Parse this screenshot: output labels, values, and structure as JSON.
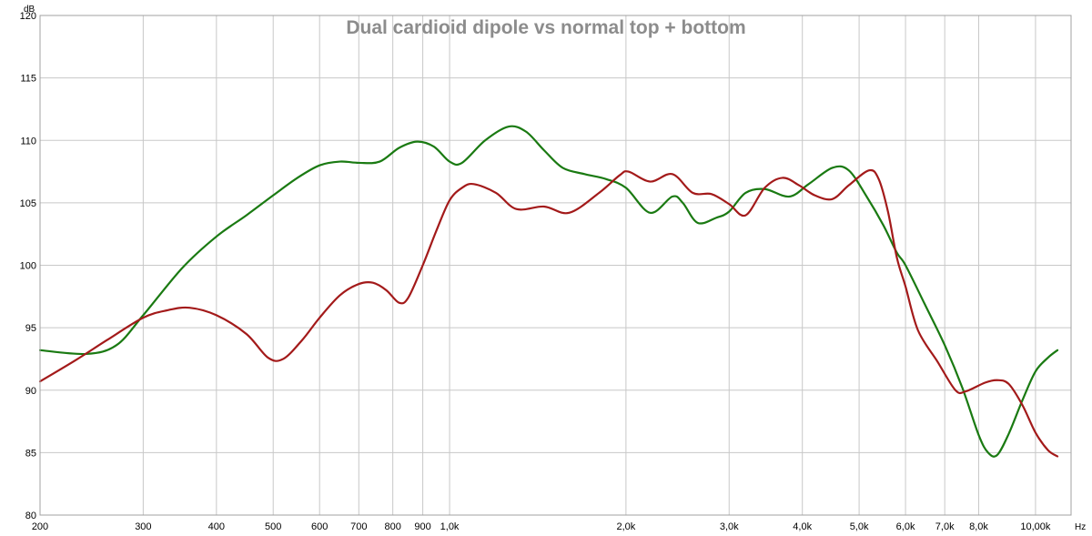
{
  "chart_data": {
    "type": "line",
    "title": "Dual cardioid dipole vs normal top + bottom",
    "ylabel": "dB",
    "xunit": "Hz",
    "xscale": "log",
    "xlim": [
      200,
      11500
    ],
    "ylim": [
      80,
      120
    ],
    "grid": true,
    "y_ticks": [
      {
        "value": 80,
        "label": "80"
      },
      {
        "value": 85,
        "label": "85"
      },
      {
        "value": 90,
        "label": "90"
      },
      {
        "value": 95,
        "label": "95"
      },
      {
        "value": 100,
        "label": "100"
      },
      {
        "value": 105,
        "label": "105"
      },
      {
        "value": 110,
        "label": "110"
      },
      {
        "value": 115,
        "label": "115"
      },
      {
        "value": 120,
        "label": "120"
      }
    ],
    "x_ticks": [
      {
        "value": 200,
        "label": "200"
      },
      {
        "value": 300,
        "label": "300"
      },
      {
        "value": 400,
        "label": "400"
      },
      {
        "value": 500,
        "label": "500"
      },
      {
        "value": 600,
        "label": "600"
      },
      {
        "value": 700,
        "label": "700"
      },
      {
        "value": 800,
        "label": "800"
      },
      {
        "value": 900,
        "label": "900"
      },
      {
        "value": 1000,
        "label": "1,0k"
      },
      {
        "value": 2000,
        "label": "2,0k"
      },
      {
        "value": 3000,
        "label": "3,0k"
      },
      {
        "value": 4000,
        "label": "4,0k"
      },
      {
        "value": 5000,
        "label": "5,0k"
      },
      {
        "value": 6000,
        "label": "6,0k"
      },
      {
        "value": 7000,
        "label": "7,0k"
      },
      {
        "value": 8000,
        "label": "8,0k"
      },
      {
        "value": 10000,
        "label": "10,00k"
      }
    ],
    "series": [
      {
        "color": "#1a7a12",
        "points": [
          [
            200,
            93.2
          ],
          [
            240,
            92.9
          ],
          [
            270,
            93.6
          ],
          [
            300,
            96.0
          ],
          [
            350,
            99.8
          ],
          [
            400,
            102.3
          ],
          [
            450,
            104.0
          ],
          [
            500,
            105.6
          ],
          [
            550,
            107.0
          ],
          [
            600,
            108.0
          ],
          [
            650,
            108.3
          ],
          [
            700,
            108.2
          ],
          [
            760,
            108.3
          ],
          [
            820,
            109.4
          ],
          [
            880,
            109.9
          ],
          [
            940,
            109.5
          ],
          [
            1000,
            108.3
          ],
          [
            1050,
            108.2
          ],
          [
            1150,
            110.0
          ],
          [
            1260,
            111.1
          ],
          [
            1350,
            110.7
          ],
          [
            1450,
            109.2
          ],
          [
            1560,
            107.8
          ],
          [
            1700,
            107.3
          ],
          [
            1850,
            106.9
          ],
          [
            2000,
            106.2
          ],
          [
            2200,
            104.2
          ],
          [
            2400,
            105.5
          ],
          [
            2500,
            105.0
          ],
          [
            2650,
            103.4
          ],
          [
            2850,
            103.8
          ],
          [
            3000,
            104.3
          ],
          [
            3200,
            105.8
          ],
          [
            3450,
            106.1
          ],
          [
            3800,
            105.5
          ],
          [
            4100,
            106.5
          ],
          [
            4500,
            107.8
          ],
          [
            4800,
            107.6
          ],
          [
            5150,
            105.5
          ],
          [
            5500,
            103.2
          ],
          [
            5800,
            101.0
          ],
          [
            6000,
            100.0
          ],
          [
            6500,
            96.7
          ],
          [
            7000,
            93.6
          ],
          [
            7500,
            90.2
          ],
          [
            8000,
            86.4
          ],
          [
            8300,
            85.0
          ],
          [
            8600,
            84.8
          ],
          [
            9000,
            86.5
          ],
          [
            9500,
            89.2
          ],
          [
            10000,
            91.5
          ],
          [
            10500,
            92.6
          ],
          [
            10900,
            93.2
          ]
        ]
      },
      {
        "color": "#a31a1a",
        "points": [
          [
            200,
            90.7
          ],
          [
            230,
            92.4
          ],
          [
            260,
            94.0
          ],
          [
            300,
            95.8
          ],
          [
            330,
            96.4
          ],
          [
            360,
            96.6
          ],
          [
            400,
            96.0
          ],
          [
            450,
            94.5
          ],
          [
            490,
            92.6
          ],
          [
            520,
            92.5
          ],
          [
            560,
            94.0
          ],
          [
            600,
            95.8
          ],
          [
            650,
            97.6
          ],
          [
            700,
            98.5
          ],
          [
            740,
            98.6
          ],
          [
            780,
            98.0
          ],
          [
            820,
            97.0
          ],
          [
            850,
            97.4
          ],
          [
            900,
            100.0
          ],
          [
            950,
            102.8
          ],
          [
            1000,
            105.2
          ],
          [
            1050,
            106.2
          ],
          [
            1100,
            106.5
          ],
          [
            1200,
            105.8
          ],
          [
            1300,
            104.5
          ],
          [
            1450,
            104.7
          ],
          [
            1600,
            104.2
          ],
          [
            1800,
            105.8
          ],
          [
            1950,
            107.2
          ],
          [
            2020,
            107.5
          ],
          [
            2200,
            106.7
          ],
          [
            2400,
            107.3
          ],
          [
            2600,
            105.8
          ],
          [
            2800,
            105.7
          ],
          [
            3000,
            104.9
          ],
          [
            3200,
            104.0
          ],
          [
            3450,
            106.2
          ],
          [
            3700,
            107.0
          ],
          [
            3950,
            106.4
          ],
          [
            4200,
            105.6
          ],
          [
            4500,
            105.3
          ],
          [
            4800,
            106.4
          ],
          [
            5200,
            107.6
          ],
          [
            5400,
            106.9
          ],
          [
            5600,
            104.3
          ],
          [
            5800,
            100.6
          ],
          [
            6000,
            98.3
          ],
          [
            6300,
            94.8
          ],
          [
            6800,
            92.3
          ],
          [
            7300,
            90.0
          ],
          [
            7600,
            89.9
          ],
          [
            8200,
            90.6
          ],
          [
            8600,
            90.8
          ],
          [
            9000,
            90.5
          ],
          [
            9500,
            88.8
          ],
          [
            10000,
            86.6
          ],
          [
            10500,
            85.2
          ],
          [
            10900,
            84.7
          ]
        ]
      }
    ]
  }
}
